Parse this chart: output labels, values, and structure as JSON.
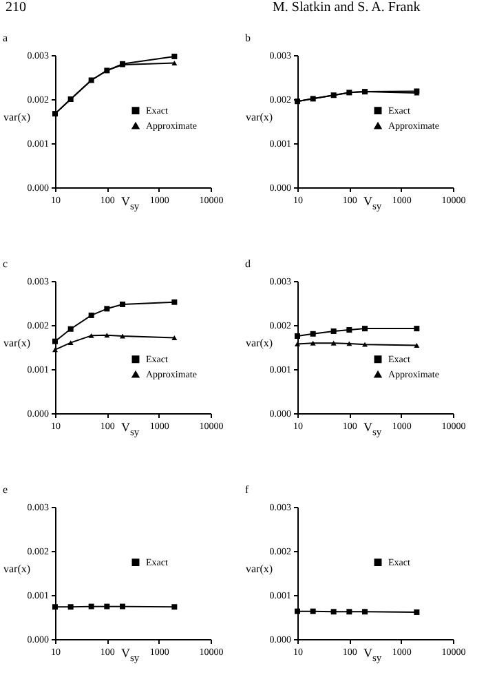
{
  "chart_data": [
    {
      "type": "line",
      "title": "a",
      "annotations": [
        "210"
      ],
      "xlabel": "V$_{sy}$",
      "ylabel": "var(x)",
      "x": [
        10,
        20,
        50,
        100,
        200,
        2000
      ],
      "log": "x",
      "xlim": [
        10,
        10000
      ],
      "xticks": [
        10,
        100,
        1000,
        10000
      ],
      "ylim": [
        0,
        0.003
      ],
      "yticks": [
        {
          "value": 0,
          "label": "0.000"
        },
        {
          "value": 0.001,
          "label": "0.001"
        },
        {
          "value": 0.002,
          "label": "0.002"
        },
        {
          "value": 0.003,
          "label": "0.003"
        }
      ],
      "legend": "right",
      "series": [
        {
          "name": "Exact",
          "color": "#000000",
          "marker": "square",
          "values": [
            0.00167,
            0.002,
            0.00243,
            0.00265,
            0.0028,
            0.00297
          ]
        },
        {
          "name": "Approximate",
          "color": "#000000",
          "marker": "triangle",
          "values": [
            0.00167,
            0.002,
            0.00243,
            0.00265,
            0.00278,
            0.00282
          ]
        }
      ]
    },
    {
      "type": "line",
      "title": "b",
      "annotations": [
        "M. Slatkin and S. A. Frank"
      ],
      "xlabel": "V$_{sy}$",
      "ylabel": "var(x)",
      "x": [
        10,
        20,
        50,
        100,
        200,
        2000
      ],
      "log": "x",
      "xlim": [
        10,
        10000
      ],
      "xticks": [
        10,
        100,
        1000,
        10000
      ],
      "ylim": [
        0,
        0.003
      ],
      "yticks": [
        {
          "value": 0,
          "label": "0.000"
        },
        {
          "value": 0.001,
          "label": "0.001"
        },
        {
          "value": 0.002,
          "label": "0.002"
        },
        {
          "value": 0.003,
          "label": "0.003"
        }
      ],
      "legend": "right",
      "series": [
        {
          "name": "Exact",
          "color": "#000000",
          "marker": "square",
          "values": [
            0.00195,
            0.00201,
            0.00209,
            0.00215,
            0.00217,
            0.00218
          ]
        },
        {
          "name": "Approximate",
          "color": "#000000",
          "marker": "triangle",
          "values": [
            0.00195,
            0.00201,
            0.00209,
            0.00215,
            0.00217,
            0.00214
          ]
        }
      ]
    },
    {
      "type": "line",
      "title": "c",
      "xlabel": "V$_{sy}$",
      "ylabel": "var(x)",
      "x": [
        10,
        20,
        50,
        100,
        200,
        2000
      ],
      "log": "x",
      "xlim": [
        10,
        10000
      ],
      "xticks": [
        10,
        100,
        1000,
        10000
      ],
      "ylim": [
        0,
        0.003
      ],
      "yticks": [
        {
          "value": 0,
          "label": "0.000"
        },
        {
          "value": 0.001,
          "label": "0.001"
        },
        {
          "value": 0.002,
          "label": "0.002"
        },
        {
          "value": 0.003,
          "label": "0.003"
        }
      ],
      "legend": "bottom right",
      "series": [
        {
          "name": "Exact",
          "color": "#000000",
          "marker": "square",
          "values": [
            0.00163,
            0.00191,
            0.00222,
            0.00237,
            0.00247,
            0.00252
          ]
        },
        {
          "name": "Approximate",
          "color": "#000000",
          "marker": "triangle",
          "values": [
            0.00144,
            0.0016,
            0.00176,
            0.00177,
            0.00175,
            0.00171
          ]
        }
      ]
    },
    {
      "type": "line",
      "title": "d",
      "xlabel": "V$_{sy}$",
      "ylabel": "var(x)",
      "x": [
        10,
        20,
        50,
        100,
        200,
        2000
      ],
      "log": "x",
      "xlim": [
        10,
        10000
      ],
      "xticks": [
        10,
        100,
        1000,
        10000
      ],
      "ylim": [
        0,
        0.003
      ],
      "yticks": [
        {
          "value": 0,
          "label": "0.000"
        },
        {
          "value": 0.001,
          "label": "0.001"
        },
        {
          "value": 0.002,
          "label": "0.002"
        },
        {
          "value": 0.003,
          "label": "0.003"
        }
      ],
      "legend": "bottom right",
      "series": [
        {
          "name": "Exact",
          "color": "#000000",
          "marker": "square",
          "values": [
            0.00175,
            0.0018,
            0.00186,
            0.00189,
            0.00192,
            0.00192
          ]
        },
        {
          "name": "Approximate",
          "color": "#000000",
          "marker": "triangle",
          "values": [
            0.00157,
            0.00159,
            0.00159,
            0.00158,
            0.00156,
            0.00154
          ]
        }
      ]
    },
    {
      "type": "line",
      "title": "e",
      "xlabel": "V$_{sy}$",
      "ylabel": "var(x)",
      "x": [
        10,
        20,
        50,
        100,
        200,
        2000
      ],
      "log": "x",
      "xlim": [
        10,
        10000
      ],
      "xticks": [
        10,
        100,
        1000,
        10000
      ],
      "ylim": [
        0,
        0.003
      ],
      "yticks": [
        {
          "value": 0,
          "label": "0.000"
        },
        {
          "value": 0.001,
          "label": "0.001"
        },
        {
          "value": 0.002,
          "label": "0.002"
        },
        {
          "value": 0.003,
          "label": "0.003"
        }
      ],
      "legend": "right",
      "series": [
        {
          "name": "Exact",
          "color": "#000000",
          "marker": "square",
          "values": [
            0.00073,
            0.00073,
            0.00074,
            0.00074,
            0.00074,
            0.00073
          ]
        }
      ]
    },
    {
      "type": "line",
      "title": "f",
      "xlabel": "V$_{sy}$",
      "ylabel": "var(x)",
      "x": [
        10,
        20,
        50,
        100,
        200,
        2000
      ],
      "log": "x",
      "xlim": [
        10,
        10000
      ],
      "xticks": [
        10,
        100,
        1000,
        10000
      ],
      "ylim": [
        0,
        0.003
      ],
      "yticks": [
        {
          "value": 0,
          "label": "0.000"
        },
        {
          "value": 0.001,
          "label": "0.001"
        },
        {
          "value": 0.002,
          "label": "0.002"
        },
        {
          "value": 0.003,
          "label": "0.003"
        }
      ],
      "legend": "right",
      "series": [
        {
          "name": "Exact",
          "color": "#000000",
          "marker": "square",
          "values": [
            0.00063,
            0.00063,
            0.00062,
            0.00062,
            0.00062,
            0.00061
          ]
        }
      ]
    }
  ]
}
